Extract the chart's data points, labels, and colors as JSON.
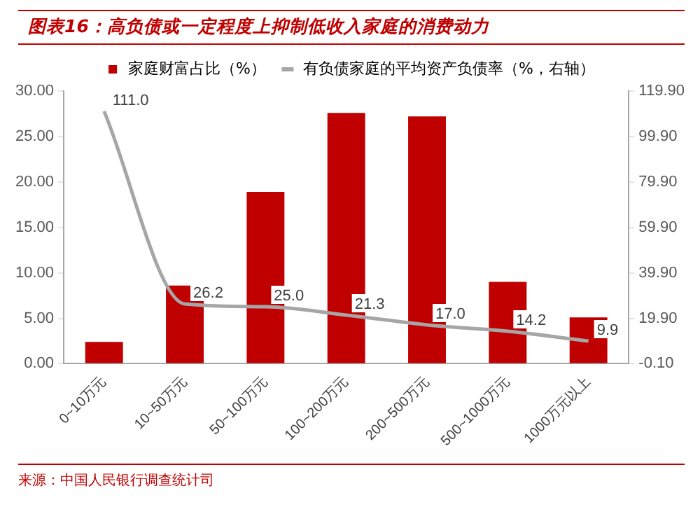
{
  "chart_data": {
    "type": "bar",
    "title": "图表16：高负债或一定程度上抑制低收入家庭的消费动力",
    "categories": [
      "0~10万元",
      "10~50万元",
      "50~100万元",
      "100~200万元",
      "200~500万元",
      "500~1000万元",
      "1000万元以上"
    ],
    "series": [
      {
        "name": "家庭财富占比（%）",
        "color": "#c00000",
        "values": [
          2.4,
          8.6,
          18.9,
          27.6,
          27.2,
          9.0,
          5.1
        ]
      },
      {
        "name": "有负债家庭的平均资产负债率（%，右轴）",
        "type": "line",
        "axis": "y2",
        "color": "#a6a6a6",
        "marker": "none",
        "values": [
          111.0,
          26.2,
          25.0,
          21.3,
          17.0,
          14.2,
          9.9
        ],
        "value_labels": [
          "111.0",
          "26.2",
          "25.0",
          "21.3",
          "17.0",
          "14.2",
          "9.9"
        ]
      }
    ],
    "ylim": [
      0,
      30
    ],
    "yticks": [
      {
        "value": 0,
        "label": "0.00"
      },
      {
        "value": 5,
        "label": "5.00"
      },
      {
        "value": 10,
        "label": "10.00"
      },
      {
        "value": 15,
        "label": "15.00"
      },
      {
        "value": 20,
        "label": "20.00"
      },
      {
        "value": 25,
        "label": "25.00"
      },
      {
        "value": 30,
        "label": "30.00"
      }
    ],
    "y2lim": [
      -0.1,
      119.9
    ],
    "y2ticks": [
      {
        "value": -0.1,
        "label": "-0.10"
      },
      {
        "value": 19.9,
        "label": "19.90"
      },
      {
        "value": 39.9,
        "label": "39.90"
      },
      {
        "value": 59.9,
        "label": "59.90"
      },
      {
        "value": 79.9,
        "label": "79.90"
      },
      {
        "value": 99.9,
        "label": "99.90"
      },
      {
        "value": 119.9,
        "label": "119.90"
      }
    ],
    "grid": false,
    "legend": "top",
    "annotations": [
      "来源：中国人民银行调查统计司"
    ]
  }
}
